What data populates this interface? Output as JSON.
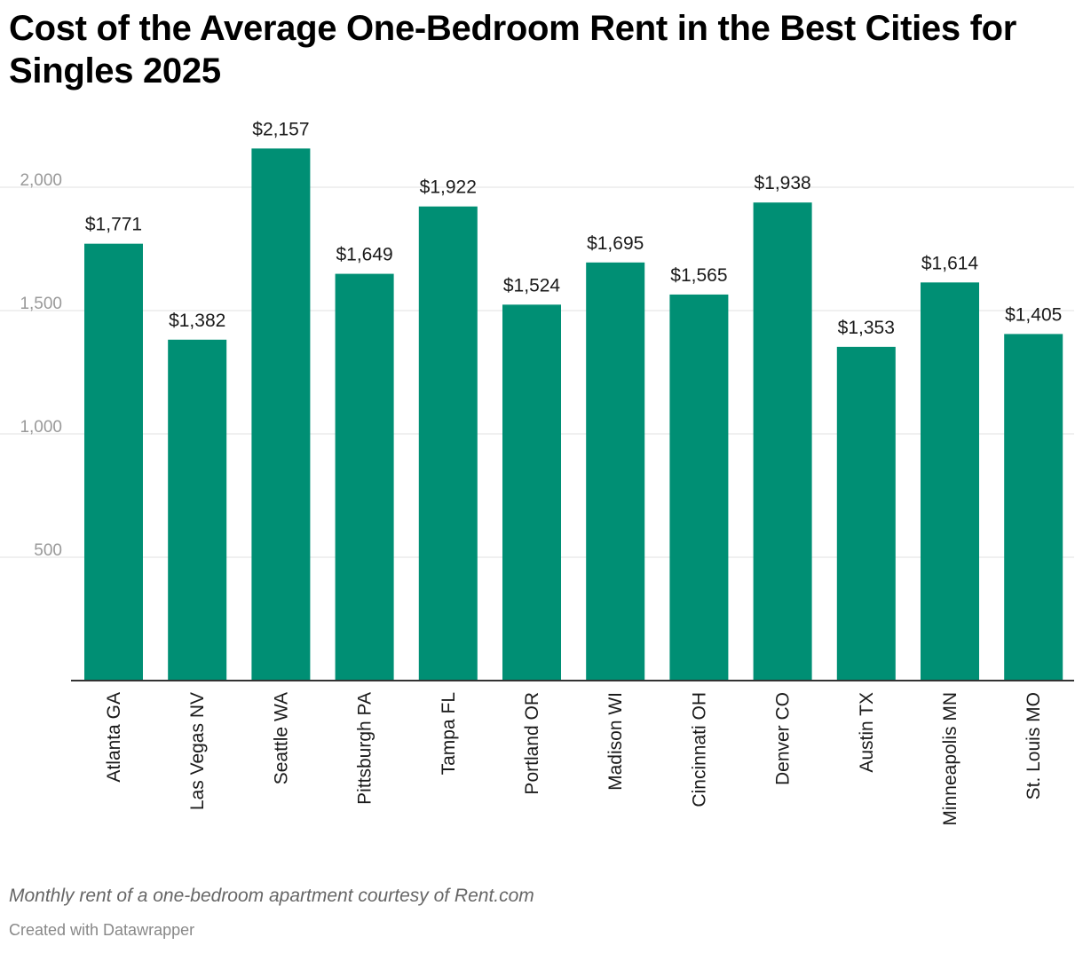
{
  "header": {
    "title": "Cost of the Average One-Bedroom Rent in the Best Cities for Singles 2025"
  },
  "footer": {
    "note": "Monthly rent of a one-bedroom apartment courtesy of Rent.com",
    "credit": "Created with Datawrapper"
  },
  "colors": {
    "bar": "#008f74",
    "gridline": "#e0e0e0",
    "axis": "#333333",
    "tick_label": "#999999",
    "value_label": "#1a1a1a"
  },
  "chart_data": {
    "type": "bar",
    "title": "Cost of the Average One-Bedroom Rent in the Best Cities for Singles 2025",
    "xlabel": "",
    "ylabel": "",
    "ylim": [
      0,
      2200
    ],
    "yticks": [
      500,
      1000,
      1500,
      2000
    ],
    "ytick_labels": [
      "500",
      "1,000",
      "1,500",
      "2,000"
    ],
    "grid": true,
    "categories": [
      "Atlanta GA",
      "Las Vegas NV",
      "Seattle WA",
      "Pittsburgh PA",
      "Tampa FL",
      "Portland OR",
      "Madison WI",
      "Cincinnati OH",
      "Denver CO",
      "Austin TX",
      "Minneapolis MN",
      "St. Louis MO"
    ],
    "values": [
      1771,
      1382,
      2157,
      1649,
      1922,
      1524,
      1695,
      1565,
      1938,
      1353,
      1614,
      1405
    ],
    "value_labels": [
      "$1,771",
      "$1,382",
      "$2,157",
      "$1,649",
      "$1,922",
      "$1,524",
      "$1,695",
      "$1,565",
      "$1,938",
      "$1,353",
      "$1,614",
      "$1,405"
    ]
  }
}
